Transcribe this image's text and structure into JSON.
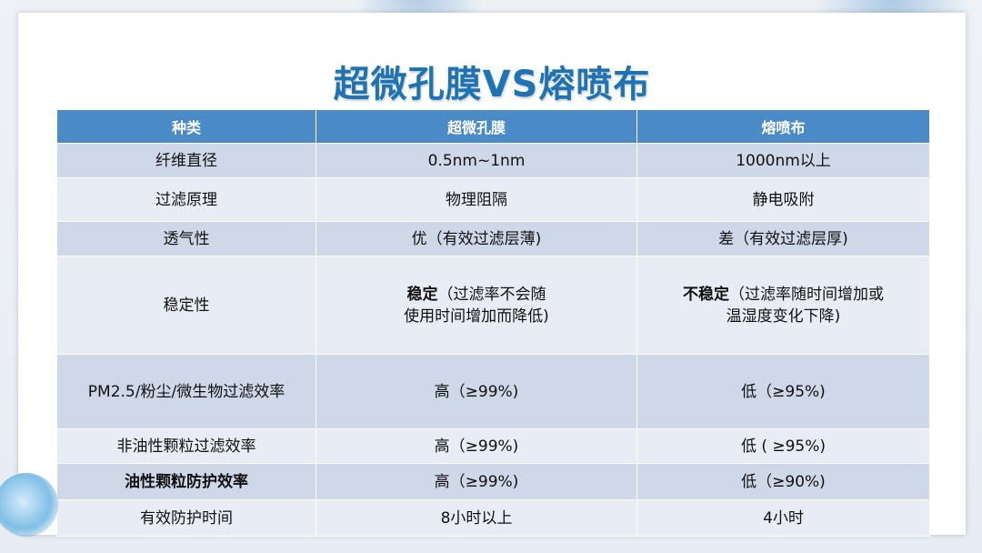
{
  "title": "超微孔膜VS熔喷布",
  "table": {
    "headers": [
      "种类",
      "超微孔膜",
      "熔喷布"
    ],
    "rows": [
      {
        "label": "纤维直径",
        "membrane": "0.5nm~1nm",
        "meltblown": "1000nm以上"
      },
      {
        "label": "过滤原理",
        "membrane": "物理阻隔",
        "meltblown": "静电吸附"
      },
      {
        "label": "透气性",
        "membrane": "优（有效过滤层薄)",
        "meltblown": "差（有效过滤层厚)"
      },
      {
        "label": "稳定性",
        "membrane_bold": "稳定",
        "membrane_line1": "（过滤率不会随",
        "membrane_line2": "使用时间增加而降低)",
        "meltblown_bold": "不稳定",
        "meltblown_line1": "（过滤率随时间增加或",
        "meltblown_line2": "温湿度变化下降)"
      },
      {
        "label": "PM2.5/粉尘/微生物过滤效率",
        "membrane": "高（≥99%)",
        "meltblown": "低（≥95%)"
      },
      {
        "label": "非油性颗粒过滤效率",
        "membrane": "高（≥99%)",
        "meltblown": "低 ( ≥95%)"
      },
      {
        "label": "油性颗粒防护效率",
        "membrane": "高（≥99%)",
        "meltblown": "低（≥90%)"
      },
      {
        "label": "有效防护时间",
        "membrane": "8小时以上",
        "meltblown": "4小时"
      }
    ]
  }
}
